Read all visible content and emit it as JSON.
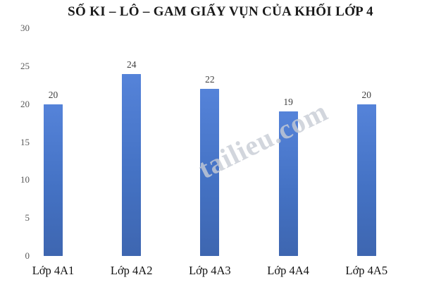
{
  "title": "SỐ KI – LÔ – GAM GIẤY VỤN CỦA KHỐI LỚP 4",
  "watermark": "tailieu.com",
  "chart_data": {
    "type": "bar",
    "title": "SỐ KI – LÔ – GAM GIẤY VỤN CỦA KHỐI LỚP 4",
    "categories": [
      "Lớp 4A1",
      "Lớp 4A2",
      "Lớp 4A3",
      "Lớp 4A4",
      "Lớp 4A5"
    ],
    "values": [
      20,
      24,
      22,
      19,
      20
    ],
    "data_labels": [
      "20",
      "24",
      "22",
      "19",
      "20"
    ],
    "y_ticks": [
      0,
      5,
      10,
      15,
      20,
      25,
      30
    ],
    "ylim": [
      0,
      30
    ],
    "xlabel": "",
    "ylabel": "",
    "grid": false,
    "legend": false,
    "bar_color": "#4472c4",
    "bar_gradient_top": "#5583d9",
    "bar_gradient_bottom": "#3e66b0",
    "value_label_color": "#3f3f3f",
    "tick_label_color": "#595959",
    "category_label_color": "#111111",
    "title_color": "#1a1a1a",
    "background_color": "#ffffff"
  }
}
